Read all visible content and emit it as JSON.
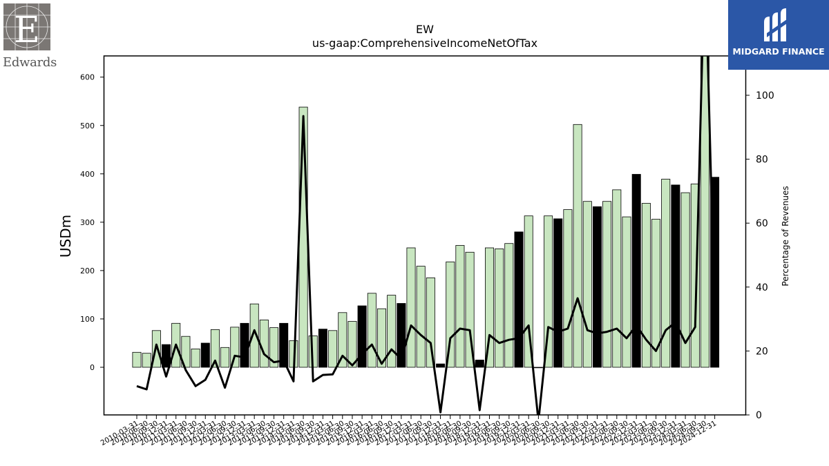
{
  "brand": {
    "left_logo_text": "Edwards",
    "right_logo_text": "MIDGARD FINANCE"
  },
  "colors": {
    "bar_normal": "#c8e6c0",
    "bar_q4": "#000000",
    "line": "#000000"
  },
  "chart_data": {
    "type": "bar",
    "title": "EW",
    "subtitle": "us-gaap:ComprehensiveIncomeNetOfTax",
    "ylabel": "USDm",
    "y2label": "Percentage of Revenues",
    "ylim": [
      -100,
      640
    ],
    "y2lim": [
      0,
      114
    ],
    "yticks": [
      0,
      100,
      200,
      300,
      400,
      500,
      600
    ],
    "y2ticks": [
      0,
      20,
      40,
      60,
      80,
      100
    ],
    "categories": [
      "2010-03-31",
      "2010-06-30",
      "2010-09-30",
      "2010-12-31",
      "2011-03-31",
      "2011-06-30",
      "2011-09-30",
      "2011-12-31",
      "2012-03-31",
      "2012-06-30",
      "2012-09-30",
      "2012-12-31",
      "2013-03-31",
      "2013-06-30",
      "2013-09-30",
      "2013-12-31",
      "2014-03-31",
      "2014-06-30",
      "2014-09-30",
      "2014-12-31",
      "2015-03-31",
      "2015-06-30",
      "2015-09-30",
      "2015-12-31",
      "2016-03-31",
      "2016-06-30",
      "2016-09-30",
      "2016-12-31",
      "2017-03-31",
      "2017-06-30",
      "2017-09-30",
      "2017-12-31",
      "2018-03-31",
      "2018-06-30",
      "2018-09-30",
      "2018-12-31",
      "2019-03-31",
      "2019-06-30",
      "2019-09-30",
      "2019-12-31",
      "2020-03-31",
      "2020-06-30",
      "2020-09-30",
      "2020-12-31",
      "2021-03-31",
      "2021-06-30",
      "2021-09-30",
      "2021-12-31",
      "2022-03-31",
      "2022-06-30",
      "2022-09-30",
      "2022-12-31",
      "2023-03-31",
      "2023-06-30",
      "2023-09-30",
      "2023-12-31",
      "2024-03-31",
      "2024-06-30",
      "2024-09-30",
      "2024-12-31"
    ],
    "xtick_labels": [
      "2010-03-31",
      "2010-06-30",
      "2010-09-30",
      "2010-12-31",
      "2011-03-31",
      "2011-06-30",
      "2011-09-30",
      "2011-12-31",
      "2012-03-31",
      "2012-06-30",
      "2012-09-30",
      "2012-12-31",
      "2013-03-31",
      "2013-06-30",
      "2013-09-30",
      "2013-12-31",
      "2014-03-31",
      "2014-06-30",
      "2014-09-30",
      "2014-12-31",
      "2015-03-31",
      "2015-06-30",
      "2015-09-30",
      "2015-12-31",
      "2016-03-31",
      "2016-06-30",
      "2016-09-30",
      "2016-12-31",
      "2017-03-31",
      "2017-06-30",
      "2017-09-30",
      "2017-12-31",
      "2018-03-31",
      "2018-06-30",
      "2018-09-30",
      "2018-12-31",
      "2019-03-31",
      "2019-06-30",
      "2019-09-30",
      "2019-12-31",
      "2020-03-31",
      "2020-06-30",
      "2020-09-30",
      "2020-12-31",
      "2021-03-31",
      "2021-06-30",
      "2021-09-30",
      "2021-12-31",
      "2022-03-31",
      "2022-06-30",
      "2022-09-30",
      "2022-12-31",
      "2023-03-31",
      "2023-06-30",
      "2023-09-30",
      "2023-12-31",
      "2024-03-31",
      "2024-06-30",
      "2024-09-30",
      "2024-12-31"
    ],
    "series": [
      {
        "kind": "bar",
        "values": [
          31,
          29,
          76,
          47,
          91,
          64,
          38,
          50,
          78,
          41,
          83,
          91,
          131,
          98,
          82,
          91,
          55,
          538,
          65,
          79,
          76,
          113,
          95,
          127,
          153,
          121,
          149,
          132,
          247,
          209,
          185,
          7,
          218,
          252,
          238,
          15,
          247,
          245,
          256,
          280,
          313,
          -1,
          313,
          307,
          326,
          502,
          343,
          332,
          343,
          367,
          311,
          399,
          339,
          306,
          389,
          377,
          361,
          379,
          660,
          393
        ]
      },
      {
        "kind": "line",
        "axis": "right",
        "values": [
          9,
          8,
          22,
          12,
          22,
          14,
          9,
          11,
          17,
          8.5,
          18.5,
          18,
          26.5,
          19,
          16.5,
          17,
          10.5,
          93.5,
          10.5,
          12.5,
          12.7,
          18.5,
          15.5,
          19,
          22,
          16,
          20.5,
          17.5,
          28,
          25,
          22.5,
          0.8,
          24,
          27,
          26.5,
          1.5,
          25,
          22.5,
          23.5,
          24,
          28,
          -2,
          27.5,
          26,
          27,
          36.5,
          26.5,
          25.5,
          26,
          27,
          24,
          28,
          23.5,
          20,
          26.5,
          29,
          22.5,
          27.5,
          145,
          30
        ]
      }
    ],
    "q4_flags": [
      0,
      0,
      0,
      1,
      0,
      0,
      0,
      1,
      0,
      0,
      0,
      1,
      0,
      0,
      0,
      1,
      0,
      0,
      0,
      1,
      0,
      0,
      0,
      1,
      0,
      0,
      0,
      1,
      0,
      0,
      0,
      1,
      0,
      0,
      0,
      1,
      0,
      0,
      0,
      1,
      0,
      0,
      0,
      1,
      0,
      0,
      0,
      1,
      0,
      0,
      0,
      1,
      0,
      0,
      0,
      1,
      0,
      0,
      0,
      1
    ]
  }
}
